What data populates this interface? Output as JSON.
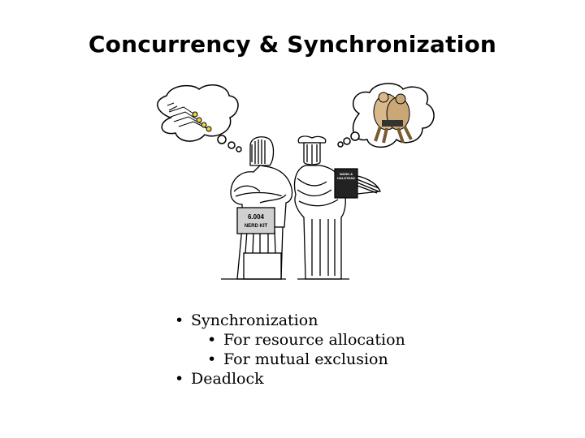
{
  "slide": {
    "title": "Concurrency & Synchronization",
    "figure": {
      "kit_label_line1": "6.004",
      "kit_label_line2": "NERD KIT",
      "book_label_line1": "WARD &",
      "book_label_line2": "HALSTEAD",
      "left_thought": "swimmers-icon",
      "right_thought": "sumo-wrestlers-icon"
    },
    "bullets": [
      {
        "text": "Synchronization",
        "level": 1
      },
      {
        "text": "For resource allocation",
        "level": 2
      },
      {
        "text": "For mutual exclusion",
        "level": 2
      },
      {
        "text": "Deadlock",
        "level": 1
      }
    ],
    "bullet_glyph": "•"
  }
}
